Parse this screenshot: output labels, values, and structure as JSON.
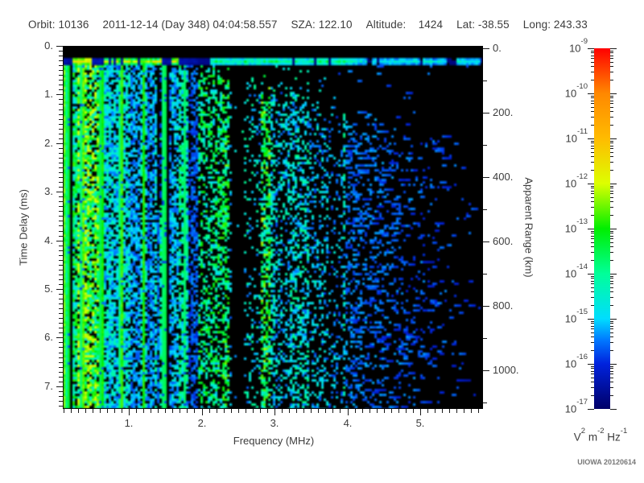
{
  "header": {
    "items": [
      "Orbit: 10136",
      "2011-12-14 (Day 348) 04:04:58.557",
      "SZA: 122.10",
      "Altitude:    1424",
      "Lat: -38.55",
      "Long: 243.33"
    ]
  },
  "watermark": "UIOWA 20120614",
  "chart_data": {
    "type": "heatmap",
    "title": "",
    "description": "Radar sounder ionogram: received spectral density vs sounding frequency and echo time delay. Mostly black background with blue/cyan/green echo speckle; dense vertical plasma-harmonic stripes below 2 MHz; horizontal transmit-pulse line near 0.27 ms; dark vertical gap near 2.5 MHz; sparse faint blue echoes above 4 MHz.",
    "xlabel": "Frequency (MHz)",
    "ylabel_left": "Time Delay (ms)",
    "ylabel_right": "Apparent Range (km)",
    "x_axis": {
      "min": 0.094,
      "max": 5.86,
      "minor_step": 0.1,
      "ticks": [
        {
          "v": 1,
          "label": "1."
        },
        {
          "v": 2,
          "label": "2."
        },
        {
          "v": 3,
          "label": "3."
        },
        {
          "v": 4,
          "label": "4."
        },
        {
          "v": 5,
          "label": "5."
        }
      ]
    },
    "y_left_axis": {
      "min": 0,
      "max": 7.47,
      "minor_step": 0.1,
      "ticks": [
        {
          "v": 0,
          "label": "0."
        },
        {
          "v": 1,
          "label": "1."
        },
        {
          "v": 2,
          "label": "2."
        },
        {
          "v": 3,
          "label": "3."
        },
        {
          "v": 4,
          "label": "4."
        },
        {
          "v": 5,
          "label": "5."
        },
        {
          "v": 6,
          "label": "6."
        },
        {
          "v": 7,
          "label": "7."
        }
      ]
    },
    "y_right_axis": {
      "min": 0,
      "max": 1120,
      "minor_step": 100,
      "ticks": [
        {
          "v": 0,
          "label": "0."
        },
        {
          "v": 200,
          "label": "200."
        },
        {
          "v": 400,
          "label": "400."
        },
        {
          "v": 600,
          "label": "600."
        },
        {
          "v": 800,
          "label": "800."
        },
        {
          "v": 1000,
          "label": "1000."
        }
      ]
    },
    "colorbar": {
      "ticks": [
        {
          "base": "10",
          "exp": "-9"
        },
        {
          "base": "10",
          "exp": "-10"
        },
        {
          "base": "10",
          "exp": "-11"
        },
        {
          "base": "10",
          "exp": "-12"
        },
        {
          "base": "10",
          "exp": "-13"
        },
        {
          "base": "10",
          "exp": "-14"
        },
        {
          "base": "10",
          "exp": "-15"
        },
        {
          "base": "10",
          "exp": "-16"
        },
        {
          "base": "10",
          "exp": "-17"
        }
      ],
      "unit_tokens": [
        {
          "t": "V"
        },
        {
          "s": "2"
        },
        {
          "t": " m"
        },
        {
          "s": "-2"
        },
        {
          "t": " Hz"
        },
        {
          "s": "-1"
        }
      ]
    },
    "colormap_stops": [
      [
        0.0,
        "#000068"
      ],
      [
        0.125,
        "#0022dd"
      ],
      [
        0.19,
        "#0077ff"
      ],
      [
        0.25,
        "#00ddff"
      ],
      [
        0.375,
        "#00ff99"
      ],
      [
        0.5,
        "#00ee00"
      ],
      [
        0.625,
        "#ddff00"
      ],
      [
        0.75,
        "#ffbb00"
      ],
      [
        0.875,
        "#ff8800"
      ],
      [
        1.0,
        "#ff0000"
      ]
    ],
    "features": {
      "seed": 911,
      "transmit_band_delay_ms": 0.27,
      "harmonic_lines_mhz": [
        0.095,
        0.16,
        0.37,
        0.63,
        0.9,
        1.2,
        1.49,
        1.78
      ],
      "harmonic_strengths": [
        0.95,
        0.8,
        0.9,
        0.85,
        0.8,
        0.7,
        0.5,
        0.32
      ],
      "stripe_region_mhz": [
        0.094,
        1.95
      ],
      "bright_speckle_mhz": [
        1.95,
        2.95
      ],
      "medium_speckle_mhz": [
        2.95,
        3.98
      ],
      "sparse_region_mhz": [
        3.98,
        5.86
      ],
      "dark_gap_mhz": [
        2.43,
        2.57
      ],
      "dark_column_mhz": [
        1.4,
        1.55
      ]
    }
  }
}
